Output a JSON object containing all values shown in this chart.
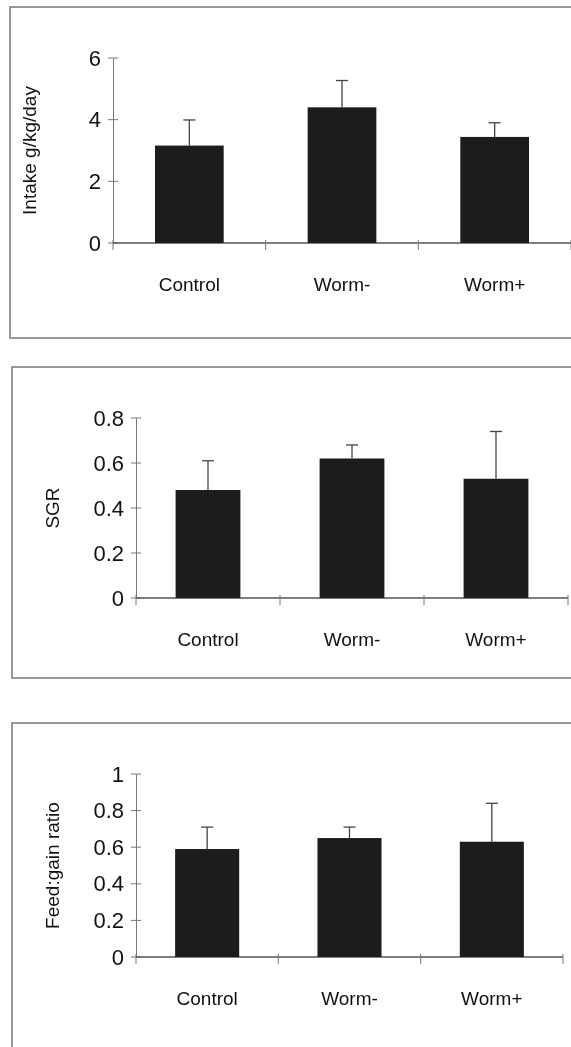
{
  "chart_data": [
    {
      "type": "bar",
      "ylabel": "Intake g/kg/day",
      "categories": [
        "Control",
        "Worm-",
        "Worm+"
      ],
      "values": [
        3.16,
        4.4,
        3.44
      ],
      "errors": [
        [
          3.16,
          3.99
        ],
        [
          4.4,
          5.27
        ],
        [
          3.44,
          3.9
        ]
      ],
      "color": "#1c1c1c",
      "ylim": [
        0,
        6
      ],
      "yticks": [
        0,
        2,
        4,
        6
      ]
    },
    {
      "type": "bar",
      "ylabel": "SGR",
      "categories": [
        "Control",
        "Worm-",
        "Worm+"
      ],
      "values": [
        0.48,
        0.62,
        0.53
      ],
      "errors": [
        [
          0.48,
          0.61
        ],
        [
          0.62,
          0.68
        ],
        [
          0.53,
          0.74
        ]
      ],
      "color": "#1c1c1c",
      "ylim": [
        0,
        0.8
      ],
      "yticks": [
        0,
        0.2,
        0.4,
        0.6,
        0.8
      ]
    },
    {
      "type": "bar",
      "ylabel": "Feed:gain ratio",
      "categories": [
        "Control",
        "Worm-",
        "Worm+"
      ],
      "values": [
        0.59,
        0.65,
        0.63
      ],
      "errors": [
        [
          0.59,
          0.71
        ],
        [
          0.65,
          0.71
        ],
        [
          0.63,
          0.84
        ]
      ],
      "color": "#1c1c1c",
      "ylim": [
        0,
        1
      ],
      "yticks": [
        0,
        0.2,
        0.4,
        0.6,
        0.8,
        1
      ]
    }
  ]
}
